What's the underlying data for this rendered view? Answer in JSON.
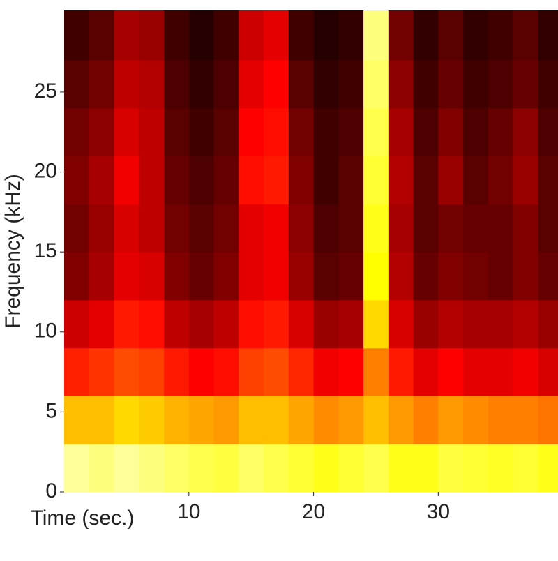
{
  "chart_data": {
    "type": "heatmap",
    "colormap": "hot",
    "xlabel": "Time (sec.)",
    "ylabel": "Frequency (kHz)",
    "x": [
      1,
      3,
      5,
      7,
      9,
      11,
      13,
      15,
      17,
      19,
      21,
      23,
      25,
      27,
      29,
      31,
      33,
      35,
      37,
      39
    ],
    "y": [
      1.5,
      4.5,
      7.5,
      10.5,
      13.5,
      16.5,
      19.5,
      22.5,
      25.5,
      28.5
    ],
    "z": [
      [
        0.92,
        0.9,
        0.92,
        0.9,
        0.88,
        0.86,
        0.85,
        0.88,
        0.86,
        0.84,
        0.82,
        0.84,
        0.86,
        0.82,
        0.82,
        0.85,
        0.84,
        0.83,
        0.84,
        0.82
      ],
      [
        0.7,
        0.7,
        0.74,
        0.72,
        0.68,
        0.66,
        0.64,
        0.7,
        0.7,
        0.66,
        0.62,
        0.64,
        0.7,
        0.64,
        0.6,
        0.64,
        0.62,
        0.6,
        0.6,
        0.58
      ],
      [
        0.45,
        0.48,
        0.52,
        0.5,
        0.44,
        0.4,
        0.42,
        0.5,
        0.52,
        0.46,
        0.38,
        0.4,
        0.6,
        0.44,
        0.36,
        0.4,
        0.36,
        0.36,
        0.38,
        0.34
      ],
      [
        0.32,
        0.36,
        0.44,
        0.42,
        0.3,
        0.26,
        0.3,
        0.42,
        0.44,
        0.34,
        0.24,
        0.26,
        0.74,
        0.34,
        0.24,
        0.28,
        0.26,
        0.26,
        0.28,
        0.24
      ],
      [
        0.2,
        0.26,
        0.36,
        0.34,
        0.2,
        0.16,
        0.2,
        0.36,
        0.38,
        0.24,
        0.14,
        0.16,
        0.8,
        0.28,
        0.16,
        0.2,
        0.18,
        0.16,
        0.2,
        0.16
      ],
      [
        0.18,
        0.24,
        0.34,
        0.3,
        0.18,
        0.14,
        0.18,
        0.36,
        0.38,
        0.22,
        0.12,
        0.14,
        0.82,
        0.26,
        0.14,
        0.18,
        0.16,
        0.16,
        0.2,
        0.14
      ],
      [
        0.2,
        0.26,
        0.38,
        0.3,
        0.16,
        0.12,
        0.16,
        0.42,
        0.44,
        0.2,
        0.1,
        0.14,
        0.84,
        0.28,
        0.14,
        0.24,
        0.14,
        0.18,
        0.24,
        0.14
      ],
      [
        0.18,
        0.22,
        0.34,
        0.3,
        0.14,
        0.1,
        0.14,
        0.4,
        0.42,
        0.18,
        0.1,
        0.12,
        0.86,
        0.26,
        0.12,
        0.2,
        0.12,
        0.16,
        0.22,
        0.12
      ],
      [
        0.14,
        0.18,
        0.3,
        0.28,
        0.12,
        0.08,
        0.12,
        0.36,
        0.4,
        0.14,
        0.08,
        0.1,
        0.88,
        0.22,
        0.1,
        0.16,
        0.1,
        0.12,
        0.16,
        0.1
      ],
      [
        0.1,
        0.14,
        0.26,
        0.24,
        0.1,
        0.06,
        0.1,
        0.32,
        0.36,
        0.1,
        0.06,
        0.08,
        0.9,
        0.18,
        0.08,
        0.14,
        0.08,
        0.1,
        0.14,
        0.08
      ]
    ],
    "xlim": [
      0,
      39.6
    ],
    "ylim": [
      0,
      30.1
    ],
    "xticks": [
      10,
      20,
      30
    ],
    "yticks": [
      0,
      5,
      10,
      15,
      20,
      25
    ]
  }
}
